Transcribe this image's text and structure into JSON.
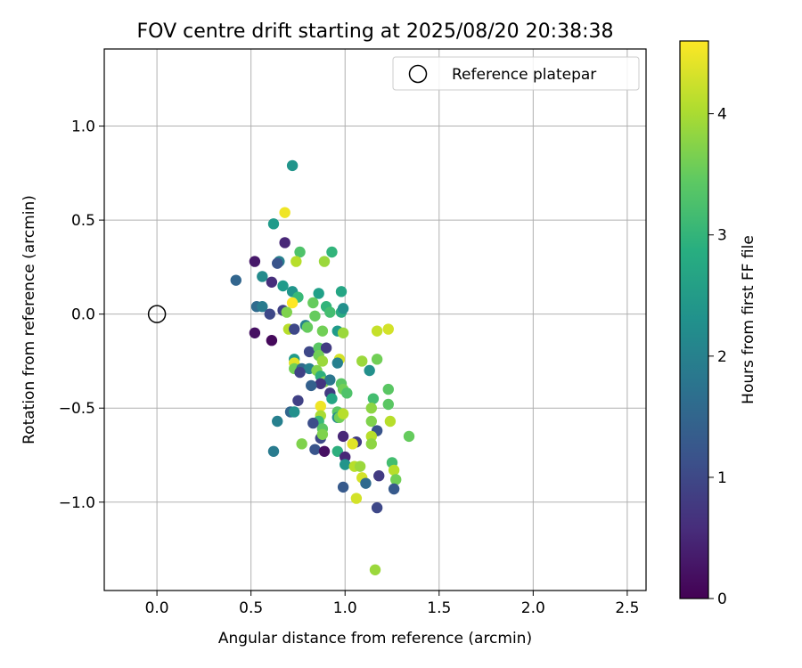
{
  "chart_data": {
    "type": "scatter",
    "title": "FOV centre drift starting at 2025/08/20 20:38:38",
    "xlabel": "Angular distance from reference (arcmin)",
    "ylabel": "Rotation from reference (arcmin)",
    "xlim": [
      -0.28,
      2.6
    ],
    "ylim": [
      -1.47,
      1.41
    ],
    "xticks": [
      0.0,
      0.5,
      1.0,
      1.5,
      2.0,
      2.5
    ],
    "xtick_labels": [
      "0.0",
      "0.5",
      "1.0",
      "1.5",
      "2.0",
      "2.5"
    ],
    "yticks": [
      -1.0,
      -0.5,
      0.0,
      0.5,
      1.0
    ],
    "ytick_labels": [
      "−1.0",
      "−0.5",
      "0.0",
      "0.5",
      "1.0"
    ],
    "grid": true,
    "legend": {
      "position": "top-right",
      "entries": [
        {
          "label": "Reference platepar",
          "marker": "open-circle"
        }
      ]
    },
    "colorbar": {
      "label": "Hours from first FF file",
      "range": [
        0,
        4.6
      ],
      "ticks": [
        0,
        1,
        2,
        3,
        4
      ],
      "tick_labels": [
        "0",
        "1",
        "2",
        "3",
        "4"
      ],
      "colormap": "viridis"
    },
    "reference": {
      "x": 0.0,
      "y": 0.0
    },
    "series": [
      {
        "points": [
          [
            0.72,
            0.79,
            2.4
          ],
          [
            0.62,
            0.48,
            2.5
          ],
          [
            0.68,
            0.54,
            4.5
          ],
          [
            0.68,
            0.38,
            0.5
          ],
          [
            0.76,
            0.33,
            3.3
          ],
          [
            0.93,
            0.33,
            3.0
          ],
          [
            0.89,
            0.28,
            3.9
          ],
          [
            0.74,
            0.28,
            4.1
          ],
          [
            0.52,
            0.28,
            0.3
          ],
          [
            0.65,
            0.28,
            2.0
          ],
          [
            0.64,
            0.27,
            1.2
          ],
          [
            0.56,
            0.2,
            2.2
          ],
          [
            0.42,
            0.18,
            1.5
          ],
          [
            0.61,
            0.17,
            0.6
          ],
          [
            0.67,
            0.15,
            2.5
          ],
          [
            0.72,
            0.12,
            2.4
          ],
          [
            0.86,
            0.11,
            2.6
          ],
          [
            0.98,
            0.12,
            2.7
          ],
          [
            0.75,
            0.09,
            3.1
          ],
          [
            0.53,
            0.04,
            1.6
          ],
          [
            0.56,
            0.04,
            1.9
          ],
          [
            0.6,
            0.0,
            1.0
          ],
          [
            0.67,
            0.02,
            0.9
          ],
          [
            0.69,
            0.01,
            3.7
          ],
          [
            0.72,
            0.06,
            4.6
          ],
          [
            0.83,
            0.06,
            3.5
          ],
          [
            0.9,
            0.04,
            3.0
          ],
          [
            0.92,
            0.01,
            3.2
          ],
          [
            0.98,
            0.01,
            2.8
          ],
          [
            0.99,
            0.03,
            2.3
          ],
          [
            0.84,
            -0.01,
            3.5
          ],
          [
            0.52,
            -0.1,
            0.2
          ],
          [
            0.61,
            -0.14,
            0.1
          ],
          [
            0.7,
            -0.08,
            4.1
          ],
          [
            0.73,
            -0.08,
            1.0
          ],
          [
            0.79,
            -0.06,
            2.0
          ],
          [
            0.8,
            -0.07,
            3.5
          ],
          [
            0.88,
            -0.09,
            3.6
          ],
          [
            0.96,
            -0.09,
            2.5
          ],
          [
            0.99,
            -0.1,
            3.9
          ],
          [
            1.17,
            -0.09,
            4.2
          ],
          [
            1.23,
            -0.08,
            4.3
          ],
          [
            0.81,
            -0.2,
            1.0
          ],
          [
            0.86,
            -0.18,
            3.4
          ],
          [
            0.9,
            -0.18,
            0.8
          ],
          [
            0.86,
            -0.22,
            3.6
          ],
          [
            0.88,
            -0.25,
            3.9
          ],
          [
            0.97,
            -0.24,
            4.3
          ],
          [
            0.96,
            -0.26,
            2.0
          ],
          [
            1.09,
            -0.25,
            3.9
          ],
          [
            1.17,
            -0.24,
            3.6
          ],
          [
            0.73,
            -0.24,
            2.5
          ],
          [
            0.73,
            -0.26,
            4.4
          ],
          [
            0.73,
            -0.29,
            3.6
          ],
          [
            0.77,
            -0.29,
            1.6
          ],
          [
            0.81,
            -0.29,
            2.0
          ],
          [
            0.85,
            -0.3,
            3.7
          ],
          [
            0.87,
            -0.33,
            2.9
          ],
          [
            0.76,
            -0.31,
            0.9
          ],
          [
            0.89,
            -0.36,
            3.7
          ],
          [
            0.92,
            -0.35,
            1.8
          ],
          [
            0.87,
            -0.37,
            0.7
          ],
          [
            0.82,
            -0.38,
            1.4
          ],
          [
            0.98,
            -0.37,
            3.4
          ],
          [
            0.99,
            -0.4,
            3.6
          ],
          [
            1.01,
            -0.42,
            3.3
          ],
          [
            0.92,
            -0.42,
            0.8
          ],
          [
            0.93,
            -0.45,
            2.7
          ],
          [
            0.75,
            -0.46,
            0.9
          ],
          [
            1.13,
            -0.3,
            2.3
          ],
          [
            1.15,
            -0.45,
            3.2
          ],
          [
            1.23,
            -0.4,
            3.4
          ],
          [
            1.23,
            -0.48,
            3.4
          ],
          [
            0.96,
            -0.52,
            3.4
          ],
          [
            0.96,
            -0.55,
            2.2
          ],
          [
            0.97,
            -0.55,
            3.6
          ],
          [
            0.99,
            -0.53,
            4.1
          ],
          [
            0.87,
            -0.49,
            4.5
          ],
          [
            0.87,
            -0.54,
            4.0
          ],
          [
            0.86,
            -0.57,
            3.1
          ],
          [
            0.83,
            -0.58,
            1.1
          ],
          [
            0.71,
            -0.52,
            1.5
          ],
          [
            0.73,
            -0.52,
            2.3
          ],
          [
            0.64,
            -0.57,
            2.0
          ],
          [
            1.14,
            -0.5,
            3.8
          ],
          [
            1.14,
            -0.57,
            3.7
          ],
          [
            1.17,
            -0.62,
            1.2
          ],
          [
            1.24,
            -0.57,
            4.1
          ],
          [
            0.88,
            -0.61,
            3.4
          ],
          [
            0.87,
            -0.66,
            1.0
          ],
          [
            0.88,
            -0.64,
            3.7
          ],
          [
            0.99,
            -0.65,
            0.5
          ],
          [
            1.06,
            -0.68,
            0.8
          ],
          [
            1.04,
            -0.69,
            4.4
          ],
          [
            1.14,
            -0.65,
            4.1
          ],
          [
            1.14,
            -0.69,
            3.8
          ],
          [
            1.34,
            -0.65,
            3.5
          ],
          [
            0.77,
            -0.69,
            3.7
          ],
          [
            0.62,
            -0.73,
            1.9
          ],
          [
            0.84,
            -0.72,
            1.2
          ],
          [
            0.89,
            -0.73,
            0.2
          ],
          [
            0.96,
            -0.73,
            2.9
          ],
          [
            1.0,
            -0.76,
            0.5
          ],
          [
            1.0,
            -0.8,
            2.4
          ],
          [
            1.05,
            -0.81,
            4.1
          ],
          [
            1.08,
            -0.81,
            3.9
          ],
          [
            1.09,
            -0.87,
            4.3
          ],
          [
            1.11,
            -0.9,
            1.6
          ],
          [
            1.18,
            -0.86,
            0.8
          ],
          [
            1.25,
            -0.79,
            3.2
          ],
          [
            1.26,
            -0.83,
            4.1
          ],
          [
            1.27,
            -0.88,
            3.6
          ],
          [
            1.26,
            -0.93,
            1.3
          ],
          [
            0.99,
            -0.92,
            1.3
          ],
          [
            1.06,
            -0.98,
            4.3
          ],
          [
            1.17,
            -1.03,
            1.0
          ],
          [
            1.16,
            -1.36,
            3.9
          ]
        ]
      }
    ]
  }
}
